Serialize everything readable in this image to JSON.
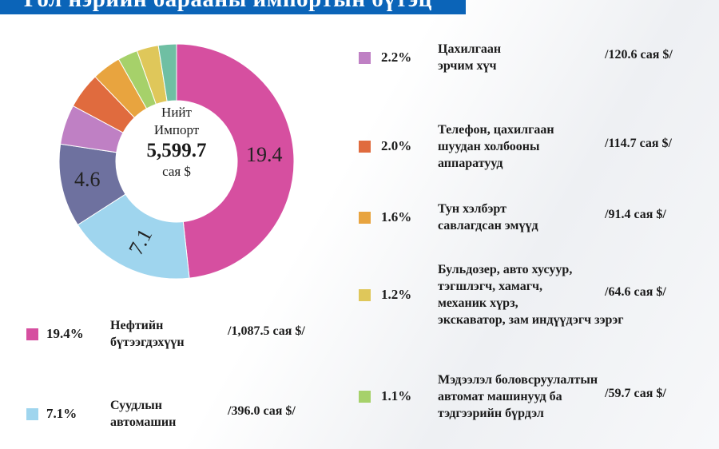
{
  "title": "Гол нэрийн барааны импортын бүтэц",
  "chart_data": {
    "type": "pie",
    "style": "donut",
    "center_label": {
      "line1": "Нийт",
      "line2": "Импорт",
      "total": "5,599.7",
      "unit": "сая $"
    },
    "slices": [
      {
        "name": "Нефтийн бүтээгдэхүүн",
        "value": 19.4,
        "pct": "19.4%",
        "amount": "/1,087.5 сая $/",
        "color": "#d64fa0",
        "label": "19.4"
      },
      {
        "name": "Суудлын автомашин",
        "value": 7.1,
        "pct": "7.1%",
        "amount": "/396.0 сая $/",
        "color": "#9fd5ee",
        "label": "7.1"
      },
      {
        "name": "",
        "value": 4.6,
        "color": "#6e719f",
        "label": "4.6"
      },
      {
        "name": "Цахилгаан эрчим хүч",
        "value": 2.2,
        "pct": "2.2%",
        "amount": "/120.6  сая $/",
        "color": "#bf80c4"
      },
      {
        "name": "Телефон, цахилгаан шуудан холбооны аппаратууд",
        "value": 2.0,
        "pct": "2.0%",
        "amount": "/114.7 сая $/",
        "color": "#e06b3e"
      },
      {
        "name": "Тун хэлбэрт савлагдсан эмүүд",
        "value": 1.6,
        "pct": "1.6%",
        "amount": "/91.4 сая $/",
        "color": "#e8a43f"
      },
      {
        "name": "Мэдээлэл боловсруулалтын автомат машинууд ба тэдгээрийн бүрдэл",
        "value": 1.1,
        "pct": "1.1%",
        "amount": "/59.7 сая $/",
        "color": "#a6d16a"
      },
      {
        "name": "Бульдозер, авто хусуур, тэгшлэгч, хамагч, механик хүрз, экскаватор, зам индүүдэгч зэрэг",
        "value": 1.2,
        "pct": "1.2%",
        "amount": "/64.6 сая $/",
        "color": "#dfc75a"
      },
      {
        "name": "",
        "value": 1.0,
        "color": "#6fbfa3"
      }
    ]
  },
  "legend_left": [
    {
      "pct": "19.4%",
      "name": "Нефтийн\nбүтээгдэхүүн",
      "amount": "/1,087.5 сая $/",
      "color": "#d64fa0"
    },
    {
      "pct": "7.1%",
      "name": "Суудлын\nавтомашин",
      "amount": "/396.0 сая $/",
      "color": "#9fd5ee"
    }
  ],
  "legend_right": [
    {
      "pct": "2.2%",
      "name": "Цахилгаан\nэрчим хүч",
      "amount": "/120.6  сая $/",
      "color": "#bf80c4"
    },
    {
      "pct": "2.0%",
      "name": "Телефон, цахилгаан\nшуудан  холбооны\nаппаратууд",
      "amount": "/114.7 сая $/",
      "color": "#e06b3e"
    },
    {
      "pct": "1.6%",
      "name": "Тун хэлбэрт\nсавлагдсан эмүүд",
      "amount": "/91.4 сая $/",
      "color": "#e8a43f"
    },
    {
      "pct": "1.2%",
      "name": "Бульдозер, авто хусуур,\nтэгшлэгч,  хамагч,\nмеханик хүрз,\nэкскаватор, зам индүүдэгч зэрэг",
      "amount": "/64.6 сая $/",
      "color": "#dfc75a"
    },
    {
      "pct": "1.1%",
      "name": "Мэдээлэл боловсруулалтын\nавтомат машинууд ба\nтэдгээрийн бүрдэл",
      "amount": "/59.7 сая $/",
      "color": "#a6d16a"
    }
  ]
}
